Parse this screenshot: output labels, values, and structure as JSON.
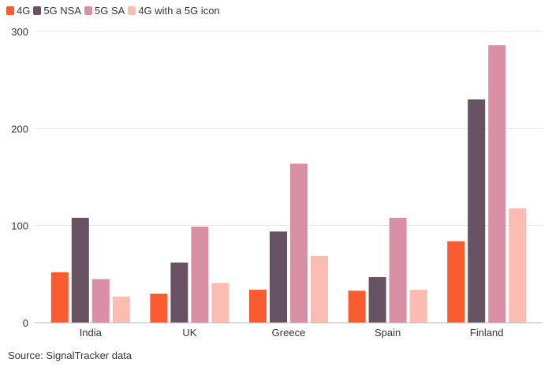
{
  "chart_data": {
    "type": "bar",
    "categories": [
      "India",
      "UK",
      "Greece",
      "Spain",
      "Finland"
    ],
    "series": [
      {
        "name": "4G",
        "color": "#fb5b31",
        "values": [
          52,
          30,
          34,
          33,
          84
        ]
      },
      {
        "name": "5G NSA",
        "color": "#675263",
        "values": [
          108,
          62,
          94,
          47,
          230
        ]
      },
      {
        "name": "5G SA",
        "color": "#d98fa4",
        "values": [
          45,
          99,
          164,
          108,
          286
        ]
      },
      {
        "name": "4G with a 5G icon",
        "color": "#fbbcb1",
        "values": [
          27,
          41,
          69,
          34,
          118
        ]
      }
    ],
    "ylim": [
      0,
      300
    ],
    "yticks": [
      "0",
      "100",
      "200",
      "300"
    ],
    "title": "",
    "xlabel": "",
    "ylabel": "",
    "grid": true,
    "legend_position": "top-left"
  },
  "source_note": "Source: SignalTracker data"
}
